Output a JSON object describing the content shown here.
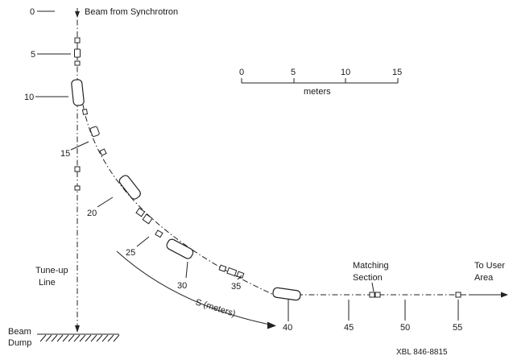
{
  "title": "Beam from Synchrotron",
  "vertical_distances": [
    "0",
    "5",
    "10",
    "15"
  ],
  "curve_distances": [
    "20",
    "25",
    "30",
    "35",
    "40"
  ],
  "straight_distances": [
    "45",
    "50",
    "55"
  ],
  "scale": {
    "ticks": [
      "0",
      "5",
      "10",
      "15"
    ],
    "unit": "meters"
  },
  "tuneup_label": [
    "Tune-up",
    "Line"
  ],
  "beam_dump_label": [
    "Beam",
    "Dump"
  ],
  "s_label": "S (meters)",
  "matching_label": [
    "Matching",
    "Section"
  ],
  "user_area_label": [
    "To User",
    "Area"
  ],
  "figure_id": "XBL 846-8815"
}
